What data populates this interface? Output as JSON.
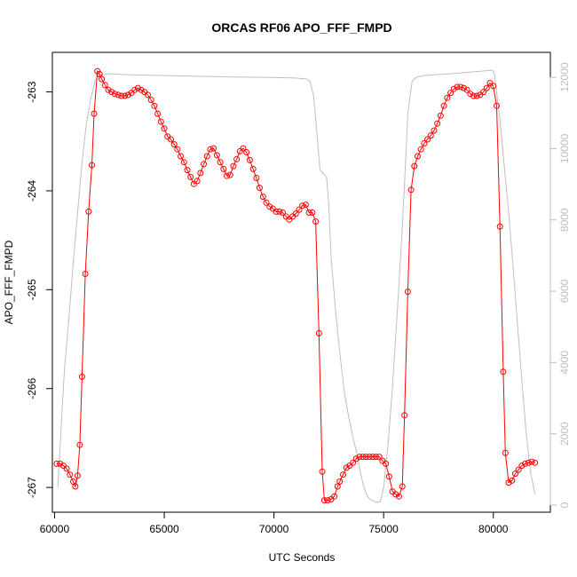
{
  "chart_data": {
    "type": "line",
    "title": "ORCAS RF06 APO_FFF_FMPD",
    "xlabel": "UTC Seconds",
    "ylabel": "APO_FFF_FMPD",
    "xlim": [
      59900,
      82600
    ],
    "ylim": [
      -267.25,
      -262.6
    ],
    "x_ticks": [
      60000,
      65000,
      70000,
      75000,
      80000
    ],
    "y_ticks": [
      -267,
      -266,
      -265,
      -264,
      -263
    ],
    "y2lim": [
      -200,
      12700
    ],
    "y2_ticks": [
      0,
      2000,
      4000,
      6000,
      8000,
      10000,
      12000
    ],
    "grid": false,
    "colors": {
      "primary": "#ff0000",
      "secondary": "#bebebe",
      "frame": "#000000"
    },
    "series": [
      {
        "axis": "left",
        "style": "points-and-line",
        "color": "#ff0000",
        "points": [
          [
            60100,
            -266.76
          ],
          [
            60250,
            -266.76
          ],
          [
            60400,
            -266.78
          ],
          [
            60550,
            -266.81
          ],
          [
            60700,
            -266.87
          ],
          [
            60850,
            -266.94
          ],
          [
            60950,
            -266.99
          ],
          [
            61050,
            -266.88
          ],
          [
            61150,
            -266.57
          ],
          [
            61250,
            -265.88
          ],
          [
            61400,
            -264.84
          ],
          [
            61550,
            -264.21
          ],
          [
            61700,
            -263.74
          ],
          [
            61800,
            -263.22
          ],
          [
            61950,
            -262.79
          ],
          [
            62050,
            -262.82
          ],
          [
            62150,
            -262.87
          ],
          [
            62300,
            -262.93
          ],
          [
            62450,
            -262.98
          ],
          [
            62600,
            -263.0
          ],
          [
            62750,
            -263.02
          ],
          [
            62900,
            -263.03
          ],
          [
            63050,
            -263.04
          ],
          [
            63200,
            -263.04
          ],
          [
            63350,
            -263.03
          ],
          [
            63500,
            -263.01
          ],
          [
            63650,
            -262.98
          ],
          [
            63800,
            -262.96
          ],
          [
            63950,
            -262.98
          ],
          [
            64100,
            -263.0
          ],
          [
            64250,
            -263.03
          ],
          [
            64400,
            -263.08
          ],
          [
            64550,
            -263.14
          ],
          [
            64700,
            -263.22
          ],
          [
            64850,
            -263.3
          ],
          [
            65000,
            -263.37
          ],
          [
            65150,
            -263.45
          ],
          [
            65300,
            -263.48
          ],
          [
            65450,
            -263.53
          ],
          [
            65600,
            -263.58
          ],
          [
            65750,
            -263.65
          ],
          [
            65900,
            -263.71
          ],
          [
            66050,
            -263.79
          ],
          [
            66200,
            -263.86
          ],
          [
            66350,
            -263.93
          ],
          [
            66500,
            -263.9
          ],
          [
            66650,
            -263.82
          ],
          [
            66800,
            -263.73
          ],
          [
            66950,
            -263.65
          ],
          [
            67100,
            -263.58
          ],
          [
            67250,
            -263.57
          ],
          [
            67400,
            -263.64
          ],
          [
            67550,
            -263.71
          ],
          [
            67700,
            -263.78
          ],
          [
            67850,
            -263.85
          ],
          [
            68000,
            -263.84
          ],
          [
            68150,
            -263.75
          ],
          [
            68300,
            -263.68
          ],
          [
            68450,
            -263.6
          ],
          [
            68600,
            -263.57
          ],
          [
            68750,
            -263.61
          ],
          [
            68900,
            -263.69
          ],
          [
            69050,
            -263.78
          ],
          [
            69200,
            -263.87
          ],
          [
            69350,
            -263.97
          ],
          [
            69500,
            -264.06
          ],
          [
            69650,
            -264.12
          ],
          [
            69800,
            -264.16
          ],
          [
            69950,
            -264.18
          ],
          [
            70100,
            -264.21
          ],
          [
            70250,
            -264.21
          ],
          [
            70400,
            -264.22
          ],
          [
            70550,
            -264.26
          ],
          [
            70700,
            -264.29
          ],
          [
            70850,
            -264.26
          ],
          [
            71000,
            -264.23
          ],
          [
            71150,
            -264.19
          ],
          [
            71300,
            -264.15
          ],
          [
            71450,
            -264.14
          ],
          [
            71600,
            -264.22
          ],
          [
            71750,
            -264.22
          ],
          [
            71900,
            -264.31
          ],
          [
            72050,
            -265.44
          ],
          [
            72200,
            -266.84
          ],
          [
            72300,
            -267.13
          ],
          [
            72450,
            -267.13
          ],
          [
            72600,
            -267.12
          ],
          [
            72750,
            -267.09
          ],
          [
            72900,
            -266.99
          ],
          [
            73000,
            -266.94
          ],
          [
            73150,
            -266.87
          ],
          [
            73300,
            -266.8
          ],
          [
            73450,
            -266.78
          ],
          [
            73600,
            -266.75
          ],
          [
            73750,
            -266.71
          ],
          [
            73900,
            -266.69
          ],
          [
            74050,
            -266.69
          ],
          [
            74200,
            -266.69
          ],
          [
            74350,
            -266.69
          ],
          [
            74500,
            -266.69
          ],
          [
            74650,
            -266.69
          ],
          [
            74800,
            -266.69
          ],
          [
            74950,
            -266.73
          ],
          [
            75100,
            -266.76
          ],
          [
            75250,
            -266.89
          ],
          [
            75400,
            -267.04
          ],
          [
            75550,
            -267.07
          ],
          [
            75700,
            -267.09
          ],
          [
            75850,
            -266.99
          ],
          [
            75950,
            -266.27
          ],
          [
            76100,
            -265.02
          ],
          [
            76250,
            -263.99
          ],
          [
            76400,
            -263.75
          ],
          [
            76550,
            -263.65
          ],
          [
            76700,
            -263.58
          ],
          [
            76850,
            -263.52
          ],
          [
            77000,
            -263.48
          ],
          [
            77150,
            -263.44
          ],
          [
            77300,
            -263.39
          ],
          [
            77450,
            -263.32
          ],
          [
            77600,
            -263.24
          ],
          [
            77750,
            -263.14
          ],
          [
            77900,
            -263.06
          ],
          [
            78050,
            -263.01
          ],
          [
            78200,
            -262.97
          ],
          [
            78350,
            -262.95
          ],
          [
            78500,
            -262.95
          ],
          [
            78650,
            -262.96
          ],
          [
            78800,
            -262.98
          ],
          [
            78950,
            -263.02
          ],
          [
            79100,
            -263.04
          ],
          [
            79250,
            -263.04
          ],
          [
            79400,
            -263.03
          ],
          [
            79550,
            -263.0
          ],
          [
            79700,
            -262.96
          ],
          [
            79850,
            -262.91
          ],
          [
            80000,
            -262.94
          ],
          [
            80150,
            -263.14
          ],
          [
            80300,
            -264.36
          ],
          [
            80450,
            -265.83
          ],
          [
            80550,
            -266.65
          ],
          [
            80700,
            -266.95
          ],
          [
            80850,
            -266.93
          ],
          [
            81000,
            -266.86
          ],
          [
            81150,
            -266.82
          ],
          [
            81300,
            -266.78
          ],
          [
            81450,
            -266.76
          ],
          [
            81600,
            -266.75
          ],
          [
            81750,
            -266.74
          ],
          [
            81900,
            -266.75
          ]
        ]
      },
      {
        "axis": "right",
        "style": "line",
        "color": "#bebebe",
        "points": [
          [
            60150,
            500
          ],
          [
            60300,
            2200
          ],
          [
            60450,
            3800
          ],
          [
            60650,
            5200
          ],
          [
            60850,
            6800
          ],
          [
            61050,
            8200
          ],
          [
            61250,
            9600
          ],
          [
            61450,
            10700
          ],
          [
            61650,
            11400
          ],
          [
            61850,
            11900
          ],
          [
            62000,
            12050
          ],
          [
            62400,
            12100
          ],
          [
            63500,
            12070
          ],
          [
            65000,
            12050
          ],
          [
            66500,
            12030
          ],
          [
            68000,
            12010
          ],
          [
            69500,
            12000
          ],
          [
            71000,
            11980
          ],
          [
            71500,
            11950
          ],
          [
            71650,
            11870
          ],
          [
            71800,
            11500
          ],
          [
            71950,
            10500
          ],
          [
            72100,
            9400
          ],
          [
            72250,
            9300
          ],
          [
            72400,
            9200
          ],
          [
            72500,
            8400
          ],
          [
            72600,
            7000
          ],
          [
            72800,
            5500
          ],
          [
            73000,
            4300
          ],
          [
            73200,
            3200
          ],
          [
            73400,
            2500
          ],
          [
            73600,
            1900
          ],
          [
            73800,
            1400
          ],
          [
            73950,
            900
          ],
          [
            74100,
            500
          ],
          [
            74250,
            250
          ],
          [
            74400,
            150
          ],
          [
            74650,
            80
          ],
          [
            74850,
            100
          ],
          [
            75000,
            500
          ],
          [
            75200,
            1700
          ],
          [
            75400,
            3300
          ],
          [
            75600,
            5200
          ],
          [
            75800,
            7200
          ],
          [
            75950,
            9000
          ],
          [
            76100,
            11000
          ],
          [
            76300,
            11900
          ],
          [
            76500,
            12000
          ],
          [
            76800,
            12050
          ],
          [
            78000,
            12100
          ],
          [
            79000,
            12150
          ],
          [
            79950,
            12200
          ],
          [
            80050,
            12100
          ],
          [
            80300,
            10800
          ],
          [
            80500,
            9500
          ],
          [
            80700,
            8200
          ],
          [
            80900,
            6700
          ],
          [
            81100,
            5100
          ],
          [
            81300,
            3500
          ],
          [
            81500,
            2000
          ],
          [
            81700,
            900
          ],
          [
            81900,
            300
          ]
        ]
      }
    ]
  }
}
